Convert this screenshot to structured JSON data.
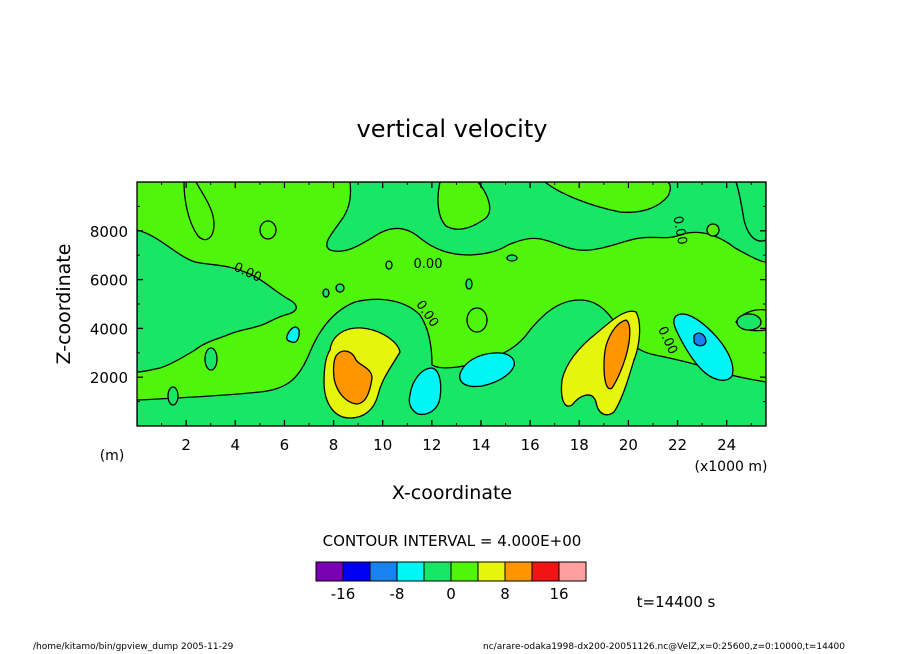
{
  "chart_data": {
    "type": "heatmap",
    "title": "vertical velocity",
    "xlabel": "X-coordinate",
    "ylabel": "Z-coordinate",
    "x_unit": "(x1000 m)",
    "y_unit": "(m)",
    "xlim": [
      0,
      25.6
    ],
    "ylim": [
      0,
      10000
    ],
    "x_ticks": [
      "2",
      "4",
      "6",
      "8",
      "10",
      "12",
      "14",
      "16",
      "18",
      "20",
      "22",
      "24"
    ],
    "x_tick_values": [
      2,
      4,
      6,
      8,
      10,
      12,
      14,
      16,
      18,
      20,
      22,
      24
    ],
    "y_ticks": [
      "2000",
      "4000",
      "6000",
      "8000"
    ],
    "y_tick_values": [
      2000,
      4000,
      6000,
      8000
    ],
    "contour_interval_text": "CONTOUR INTERVAL = 4.000E+00",
    "contour_labels": [
      "0.00",
      "0.00",
      "0.00",
      "0.00",
      "0.00"
    ],
    "colorbar": {
      "levels": [
        -20,
        -16,
        -12,
        -8,
        -4,
        0,
        4,
        8,
        12,
        16,
        20
      ],
      "labels": [
        "-16",
        "-8",
        "0",
        "8",
        "16"
      ],
      "label_values": [
        -16,
        -8,
        0,
        8,
        16
      ],
      "colors": [
        "#7a00b4",
        "#0000f0",
        "#1a82f0",
        "#00f5f5",
        "#18e664",
        "#50f50c",
        "#e6f50c",
        "#ff9600",
        "#f01414",
        "#ffa0a0"
      ]
    },
    "features": [
      {
        "x": 9.0,
        "z": 2200,
        "peak": 8,
        "label": "updraft"
      },
      {
        "x": 19.6,
        "z": 3000,
        "peak": 8,
        "label": "updraft"
      },
      {
        "x": 13.8,
        "z": 2400,
        "peak": -4,
        "label": "downdraft"
      },
      {
        "x": 11.9,
        "z": 1500,
        "peak": -4,
        "label": "downdraft"
      },
      {
        "x": 22.9,
        "z": 3400,
        "peak": -8,
        "label": "downdraft"
      },
      {
        "x": 6.4,
        "z": 3700,
        "peak": -4,
        "label": "downdraft"
      }
    ]
  },
  "time_label": "t=14400 s",
  "footer_left": "/home/kitamo/bin/gpview_dump  2005-11-29",
  "footer_right": "nc/arare-odaka1998-dx200-20051126.nc@VelZ,x=0:25600,z=0:10000,t=14400"
}
